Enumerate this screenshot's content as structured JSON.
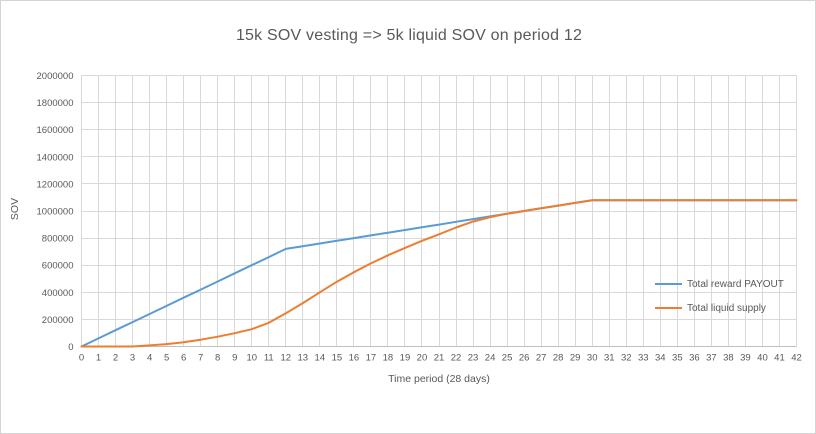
{
  "chart_data": {
    "type": "line",
    "title": "15k SOV vesting => 5k liquid SOV on period 12",
    "xlabel": "Time period (28 days)",
    "ylabel": "SOV",
    "x": [
      0,
      1,
      2,
      3,
      4,
      5,
      6,
      7,
      8,
      9,
      10,
      11,
      12,
      13,
      14,
      15,
      16,
      17,
      18,
      19,
      20,
      21,
      22,
      23,
      24,
      25,
      26,
      27,
      28,
      29,
      30,
      31,
      32,
      33,
      34,
      35,
      36,
      37,
      38,
      39,
      40,
      41,
      42
    ],
    "xlim": [
      0,
      42
    ],
    "ylim": [
      0,
      2000000
    ],
    "ytick_step": 200000,
    "grid": true,
    "legend_position": "inside-right",
    "series": [
      {
        "name": "Total reward PAYOUT",
        "color": "#5B9BD5",
        "values": [
          0,
          60000,
          120000,
          180000,
          240000,
          300000,
          360000,
          420000,
          480000,
          540000,
          600000,
          660000,
          720000,
          740000,
          760000,
          780000,
          800000,
          820000,
          840000,
          860000,
          880000,
          900000,
          920000,
          940000,
          960000,
          980000,
          1000000,
          1020000,
          1040000,
          1060000,
          1080000,
          1080000,
          1080000,
          1080000,
          1080000,
          1080000,
          1080000,
          1080000,
          1080000,
          1080000,
          1080000,
          1080000,
          1080000
        ]
      },
      {
        "name": "Total liquid supply",
        "color": "#ED7D31",
        "values": [
          0,
          0,
          0,
          0,
          8000,
          18000,
          32000,
          50000,
          72000,
          98000,
          128000,
          175000,
          245000,
          320000,
          400000,
          478000,
          548000,
          613000,
          673000,
          728000,
          780000,
          828000,
          878000,
          922000,
          955000,
          980000,
          1000000,
          1020000,
          1040000,
          1060000,
          1080000,
          1080000,
          1080000,
          1080000,
          1080000,
          1080000,
          1080000,
          1080000,
          1080000,
          1080000,
          1080000,
          1080000,
          1080000
        ]
      }
    ]
  },
  "colors": {
    "grid": "#D9D9D9",
    "axis": "#BFBFBF",
    "text": "#595959",
    "background": "#FFFFFF",
    "border": "#D4D4D4"
  }
}
